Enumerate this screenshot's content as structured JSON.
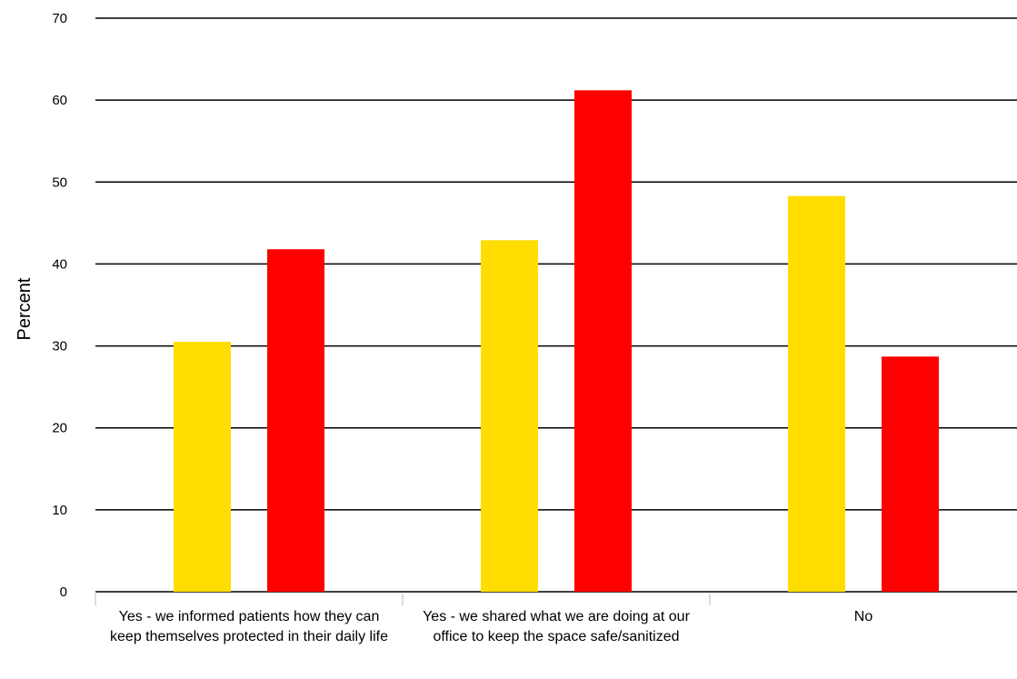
{
  "chart_data": {
    "type": "bar",
    "title": "",
    "xlabel": "",
    "ylabel": "Percent",
    "ylim": [
      0,
      70
    ],
    "yticks": [
      0,
      10,
      20,
      30,
      40,
      50,
      60,
      70
    ],
    "grid": true,
    "legend": "none",
    "categories": [
      "Yes - we informed patients how they can keep themselves protected in their daily life",
      "Yes - we shared what we are doing at our office to keep the space safe/sanitized",
      "No"
    ],
    "series": [
      {
        "values": [
          30.5,
          42.9,
          48.3
        ],
        "color": "#FFDD00"
      },
      {
        "values": [
          41.8,
          61.2,
          28.7
        ],
        "color": "#FF0000"
      }
    ]
  }
}
